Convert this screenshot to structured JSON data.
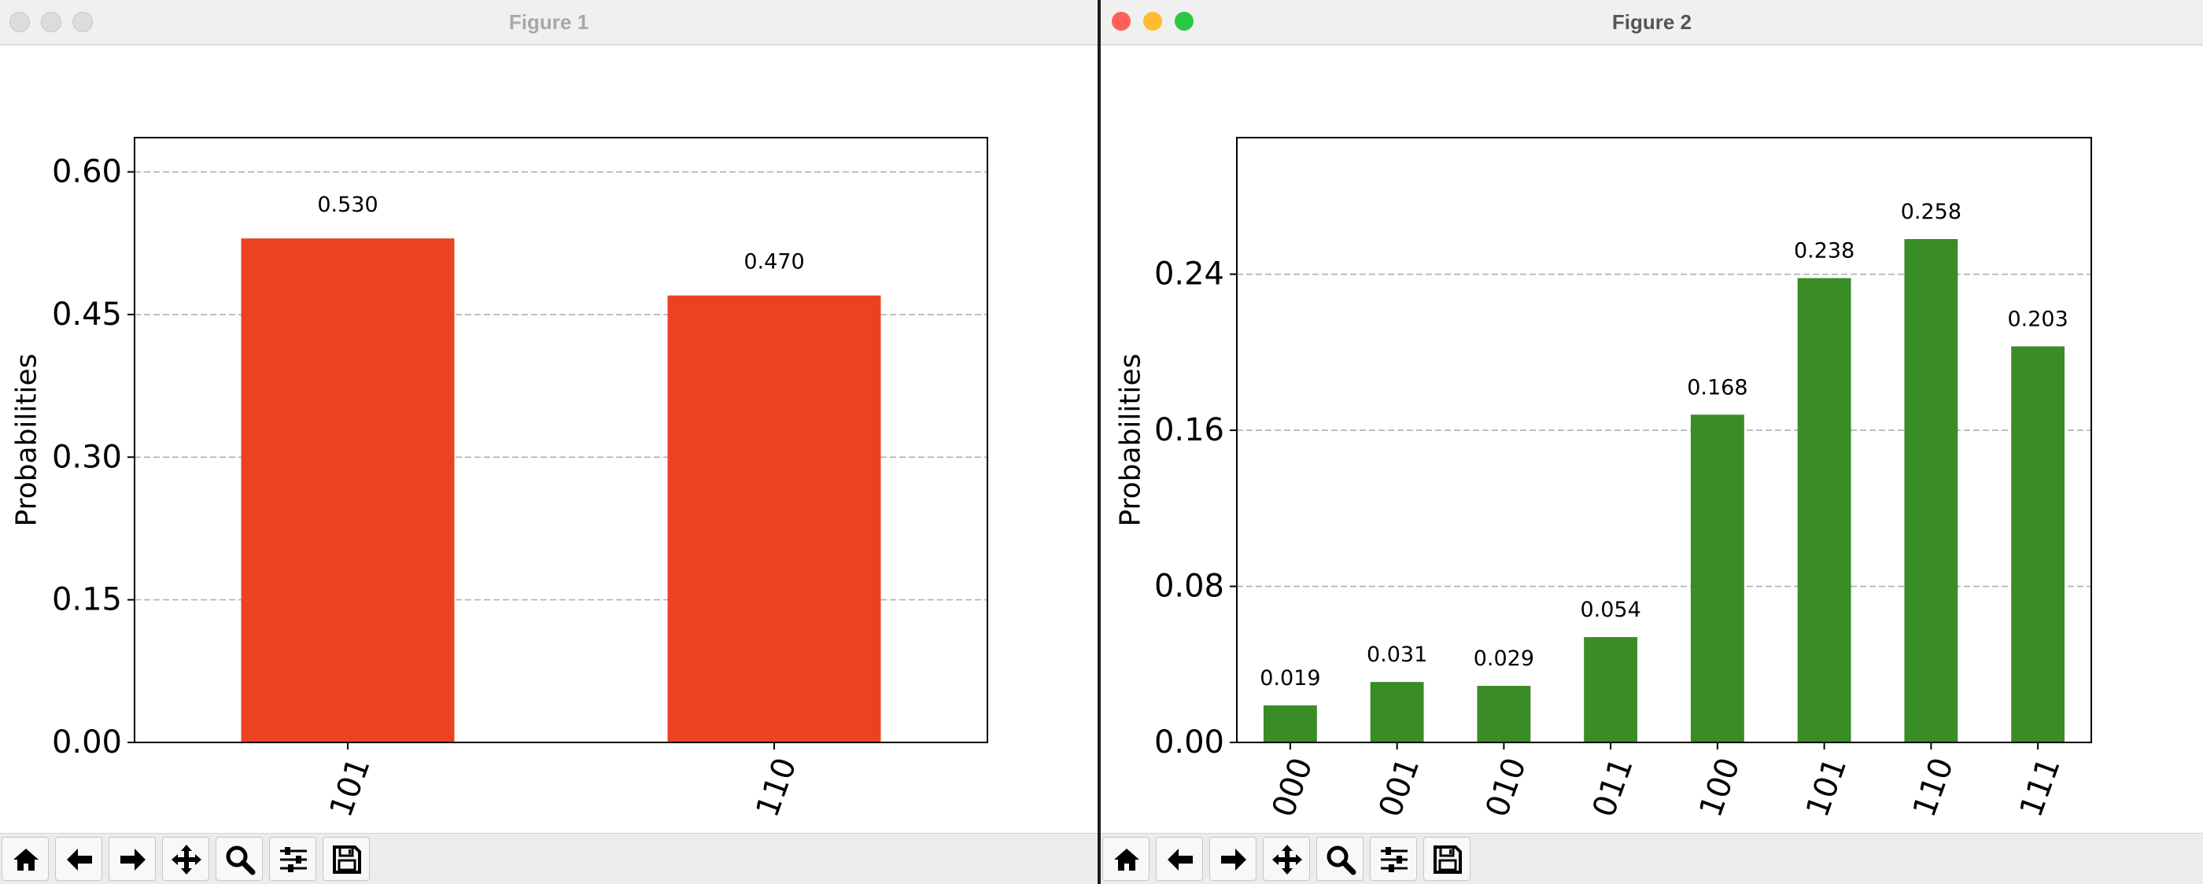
{
  "windows": [
    {
      "title": "Figure 1",
      "focused": false,
      "bar_color": "#ec4123",
      "chart": {
        "type": "bar",
        "categories": [
          "101",
          "110"
        ],
        "values": [
          0.53,
          0.47
        ],
        "value_labels": [
          "0.530",
          "0.470"
        ],
        "ylabel": "Probabilities",
        "ylim": [
          0,
          0.636
        ],
        "yticks": [
          "0.00",
          "0.15",
          "0.30",
          "0.45",
          "0.60"
        ],
        "ytick_values": [
          0,
          0.15,
          0.3,
          0.45,
          0.6
        ],
        "grid": "horizontal dashed",
        "xtick_rotation": "rotated ~70 degrees"
      }
    },
    {
      "title": "Figure 2",
      "focused": true,
      "bar_color": "#3a8c27",
      "chart": {
        "type": "bar",
        "categories": [
          "000",
          "001",
          "010",
          "011",
          "100",
          "101",
          "110",
          "111"
        ],
        "values": [
          0.019,
          0.031,
          0.029,
          0.054,
          0.168,
          0.238,
          0.258,
          0.203
        ],
        "value_labels": [
          "0.019",
          "0.031",
          "0.029",
          "0.054",
          "0.168",
          "0.238",
          "0.258",
          "0.203"
        ],
        "ylabel": "Probabilities",
        "ylim": [
          0,
          0.31
        ],
        "yticks": [
          "0.00",
          "0.08",
          "0.16",
          "0.24"
        ],
        "ytick_values": [
          0,
          0.08,
          0.16,
          0.24
        ],
        "grid": "horizontal dashed",
        "xtick_rotation": "rotated ~70 degrees"
      }
    }
  ],
  "chart_data": [
    {
      "type": "bar",
      "title": "Figure 1",
      "categories": [
        "101",
        "110"
      ],
      "values": [
        0.53,
        0.47
      ],
      "xlabel": "",
      "ylabel": "Probabilities",
      "ylim": [
        0,
        0.636
      ],
      "grid": true
    },
    {
      "type": "bar",
      "title": "Figure 2",
      "categories": [
        "000",
        "001",
        "010",
        "011",
        "100",
        "101",
        "110",
        "111"
      ],
      "values": [
        0.019,
        0.031,
        0.029,
        0.054,
        0.168,
        0.238,
        0.258,
        0.203
      ],
      "xlabel": "",
      "ylabel": "Probabilities",
      "ylim": [
        0,
        0.31
      ],
      "grid": true
    }
  ],
  "toolbar": [
    "home-icon",
    "back-arrow-icon",
    "forward-arrow-icon",
    "pan-icon",
    "zoom-icon",
    "configure-subplots-icon",
    "save-icon"
  ],
  "traffic_lights": {
    "close": "#ff5f57",
    "minimize": "#febc2e",
    "zoom": "#28c840",
    "inactive": "#dcdcdc"
  }
}
